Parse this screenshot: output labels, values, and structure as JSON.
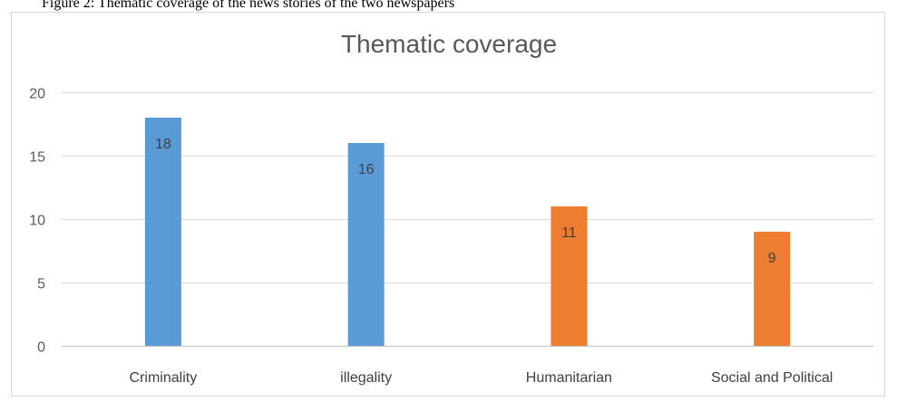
{
  "page": {
    "cropped_caption": "Figure 2: Thematic coverage of the news stories of the two newspapers"
  },
  "chart_data": {
    "type": "bar",
    "title": "Thematic coverage",
    "xlabel": "",
    "ylabel": "",
    "categories": [
      "Criminality",
      "illegality",
      "Humanitarian",
      "Social and Political"
    ],
    "values": [
      18,
      16,
      11,
      9
    ],
    "bar_colors": [
      "#5B9BD5",
      "#5B9BD5",
      "#ED7D31",
      "#ED7D31"
    ],
    "ylim": [
      0,
      20
    ],
    "yticks": [
      0,
      5,
      10,
      15,
      20
    ],
    "grid": true,
    "legend": "none",
    "data_labels": [
      "18",
      "16",
      "11",
      "9"
    ]
  }
}
